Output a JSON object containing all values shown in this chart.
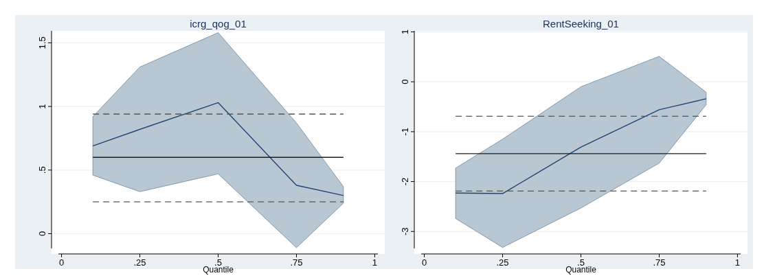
{
  "chart_data": [
    {
      "type": "line",
      "title": "icrg_qog_01",
      "xlabel": "Quantile",
      "xlim": [
        -0.01,
        1.01
      ],
      "xticks": [
        {
          "value": 0,
          "label": "0"
        },
        {
          "value": 0.25,
          "label": ".25"
        },
        {
          "value": 0.5,
          "label": ".5"
        },
        {
          "value": 0.75,
          "label": ".75"
        },
        {
          "value": 1,
          "label": "1"
        }
      ],
      "ylim": [
        -0.116,
        1.594
      ],
      "yticks": [
        {
          "value": 0,
          "label": "0"
        },
        {
          "value": 0.5,
          "label": ".5"
        },
        {
          "value": 1,
          "label": "1"
        },
        1.5
      ],
      "grid": "y",
      "marker": "none",
      "series": [
        {
          "color": "#1f4570",
          "x": [
            0.1,
            0.25,
            0.5,
            0.75,
            0.9
          ],
          "values": [
            0.69,
            0.82,
            1.03,
            0.38,
            0.3
          ],
          "lower": [
            0.46,
            0.33,
            0.47,
            -0.11,
            0.24
          ],
          "upper": [
            0.92,
            1.31,
            1.58,
            0.87,
            0.37
          ],
          "line_style": "solid"
        },
        {
          "color": "#1a1a1a",
          "x": [
            0.1,
            0.9
          ],
          "values": [
            0.6,
            0.6
          ],
          "line_style": "solid"
        },
        {
          "color": "#555555",
          "x": [
            0.1,
            0.9
          ],
          "values": [
            0.94,
            0.94
          ],
          "line_style": "dashed"
        },
        {
          "color": "#555555",
          "x": [
            0.1,
            0.9
          ],
          "values": [
            0.25,
            0.25
          ],
          "line_style": "dashed"
        }
      ]
    },
    {
      "type": "line",
      "title": "RentSeeking_01",
      "xlabel": "Quantile",
      "xlim": [
        -0.01,
        1.01
      ],
      "xticks": [
        {
          "value": 0,
          "label": "0"
        },
        {
          "value": 0.25,
          "label": ".25"
        },
        {
          "value": 0.5,
          "label": ".5"
        },
        {
          "value": 0.75,
          "label": ".75"
        },
        {
          "value": 1,
          "label": "1"
        }
      ],
      "ylim": [
        -3.34,
        1.02
      ],
      "yticks": [
        -3,
        -2,
        -1,
        0,
        1
      ],
      "grid": "y",
      "marker": "none",
      "series": [
        {
          "color": "#1f4570",
          "x": [
            0.1,
            0.25,
            0.5,
            0.75,
            0.9
          ],
          "values": [
            -2.23,
            -2.24,
            -1.31,
            -0.56,
            -0.34
          ],
          "lower": [
            -2.74,
            -3.32,
            -2.53,
            -1.63,
            -0.46
          ],
          "upper": [
            -1.73,
            -1.15,
            -0.1,
            0.51,
            -0.21
          ],
          "line_style": "solid"
        },
        {
          "color": "#1a1a1a",
          "x": [
            0.1,
            0.9
          ],
          "values": [
            -1.44,
            -1.44
          ],
          "line_style": "solid"
        },
        {
          "color": "#555555",
          "x": [
            0.1,
            0.9
          ],
          "values": [
            -0.69,
            -0.69
          ],
          "line_style": "dashed"
        },
        {
          "color": "#555555",
          "x": [
            0.1,
            0.9
          ],
          "values": [
            -2.19,
            -2.19
          ],
          "line_style": "dashed"
        }
      ]
    }
  ]
}
